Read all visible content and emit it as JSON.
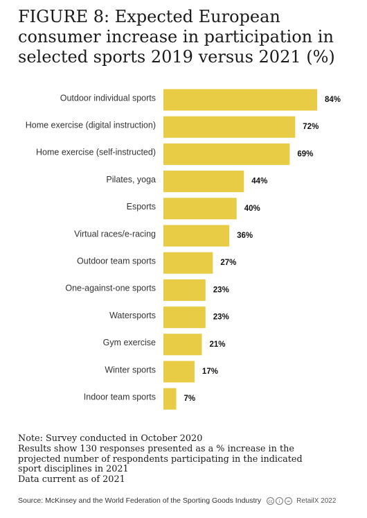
{
  "figure": {
    "title": "FIGURE 8: Expected European consumer increase in participation in selected sports 2019 versus 2021 (%)"
  },
  "chart_data": {
    "type": "bar",
    "orientation": "horizontal",
    "categories": [
      "Outdoor individual sports",
      "Home exercise (digital instruction)",
      "Home exercise (self-instructed)",
      "Pilates, yoga",
      "Esports",
      "Virtual races/e-racing",
      "Outdoor team sports",
      "One-against-one sports",
      "Watersports",
      "Gym exercise",
      "Winter sports",
      "Indoor team sports"
    ],
    "values": [
      84,
      72,
      69,
      44,
      40,
      36,
      27,
      23,
      23,
      21,
      17,
      7
    ],
    "value_labels": [
      "84%",
      "72%",
      "69%",
      "44%",
      "40%",
      "36%",
      "27%",
      "23%",
      "23%",
      "21%",
      "17%",
      "7%"
    ],
    "xlim": [
      0,
      84
    ],
    "grid": false,
    "legend": "none",
    "bar_color": "#E8CC45"
  },
  "notes": {
    "line1": "Note: Survey conducted in October 2020",
    "line2": "Results show 130 responses presented as a % increase in the",
    "line3": "projected number of respondents participating in the indicated",
    "line4": "sport disciplines in 2021",
    "line5": "Data current as of 2021"
  },
  "footer": {
    "source": "Source: McKinsey and the World Federation of the Sporting Goods Industry",
    "brand": "RetailX 2022",
    "license_icons": [
      "cc-icon",
      "by-icon",
      "nd-icon"
    ]
  }
}
